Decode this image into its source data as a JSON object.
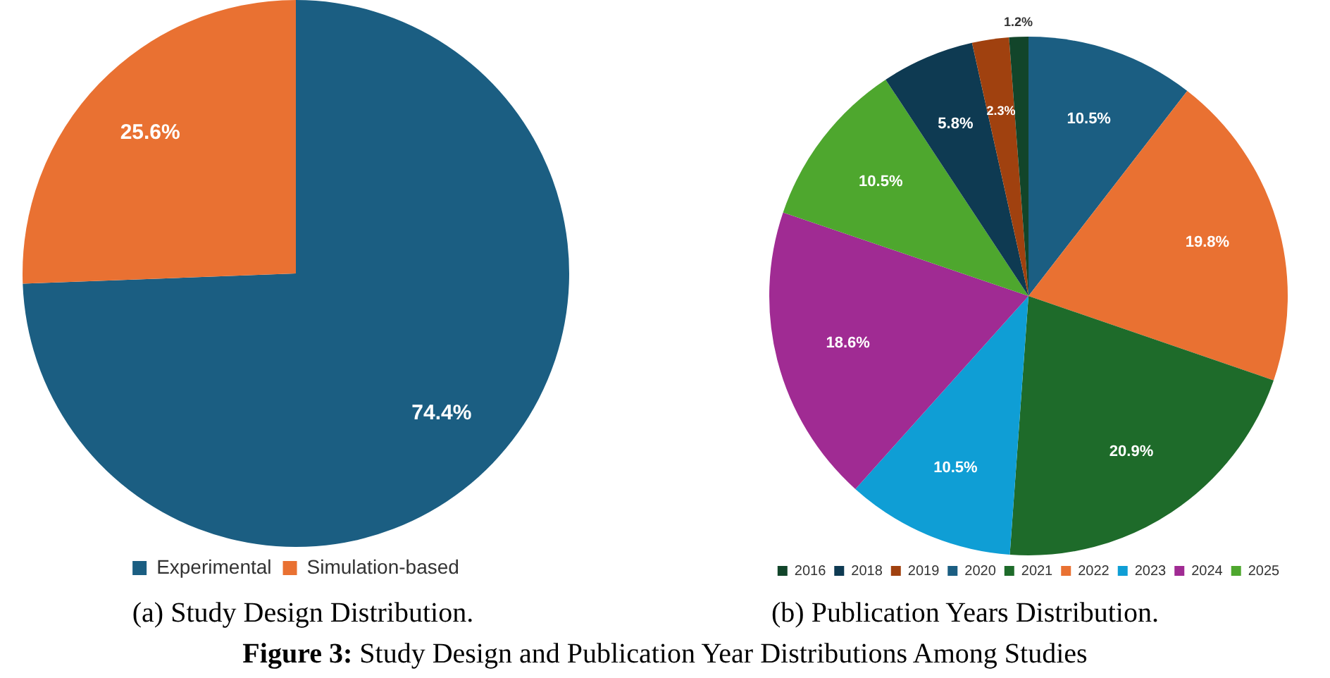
{
  "chart_data": [
    {
      "type": "pie",
      "title": "(a) Study Design Distribution.",
      "categories": [
        "Experimental",
        "Simulation-based"
      ],
      "values": [
        74.4,
        25.6
      ],
      "value_labels": [
        "74.4%",
        "25.6%"
      ],
      "colors": [
        "#1b5e82",
        "#e97132"
      ],
      "legend": "bottom",
      "annotations": [
        "Figure 3: Study Design and Publication Year Distributions Among Studies"
      ]
    },
    {
      "type": "pie",
      "title": "(b) Publication Years Distribution.",
      "categories": [
        "2020",
        "2022",
        "2021",
        "2023",
        "2024",
        "2025",
        "2018",
        "2019",
        "2016"
      ],
      "values": [
        10.5,
        19.8,
        20.9,
        10.5,
        18.6,
        10.5,
        5.8,
        2.3,
        1.2
      ],
      "value_labels": [
        "10.5%",
        "19.8%",
        "20.9%",
        "10.5%",
        "18.6%",
        "10.5%",
        "5.8%",
        "2.3%",
        "1.2%"
      ],
      "colors": [
        "#1b5e82",
        "#e97132",
        "#1e6b2a",
        "#0f9ed5",
        "#a02b93",
        "#4ea72e",
        "#0e3a52",
        "#a0410f",
        "#12452a"
      ],
      "legend": "bottom"
    }
  ]
}
